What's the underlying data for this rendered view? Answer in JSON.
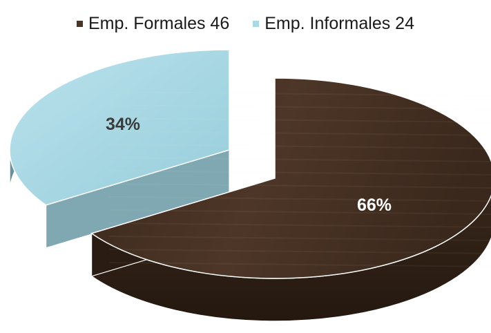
{
  "chart_data": {
    "type": "pie",
    "style": "3d-exploded",
    "legend_position": "top",
    "slices": [
      {
        "name": "Emp. Formales",
        "legend_label": "Emp. Formales 46",
        "value": 46,
        "percent_label": "66%",
        "color": "#4a3426",
        "side_color": "#2e1f16",
        "label_color": "#ffffff"
      },
      {
        "name": "Emp. Informales",
        "legend_label": "Emp. Informales 24",
        "value": 24,
        "percent_label": "34%",
        "color": "#a9d9e5",
        "side_color": "#6e9aa6",
        "label_color": "#3a3a3a"
      }
    ]
  }
}
